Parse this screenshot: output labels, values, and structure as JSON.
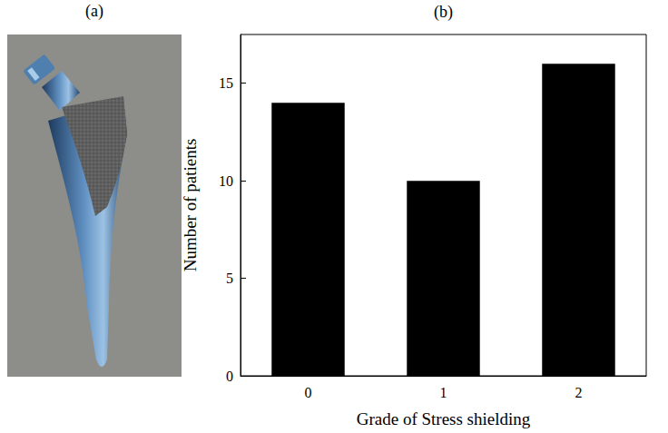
{
  "panel_labels": [
    "(a)",
    "(b)"
  ],
  "chart_data": {
    "type": "bar",
    "categories": [
      "0",
      "1",
      "2"
    ],
    "values": [
      14,
      10,
      16
    ],
    "color": "#000000",
    "xlabel": "Grade of Stress shielding",
    "ylabel": "Number of patients",
    "ylim": [
      0,
      17.5
    ],
    "yticks": [
      0,
      5,
      10,
      15
    ],
    "grid": false
  }
}
